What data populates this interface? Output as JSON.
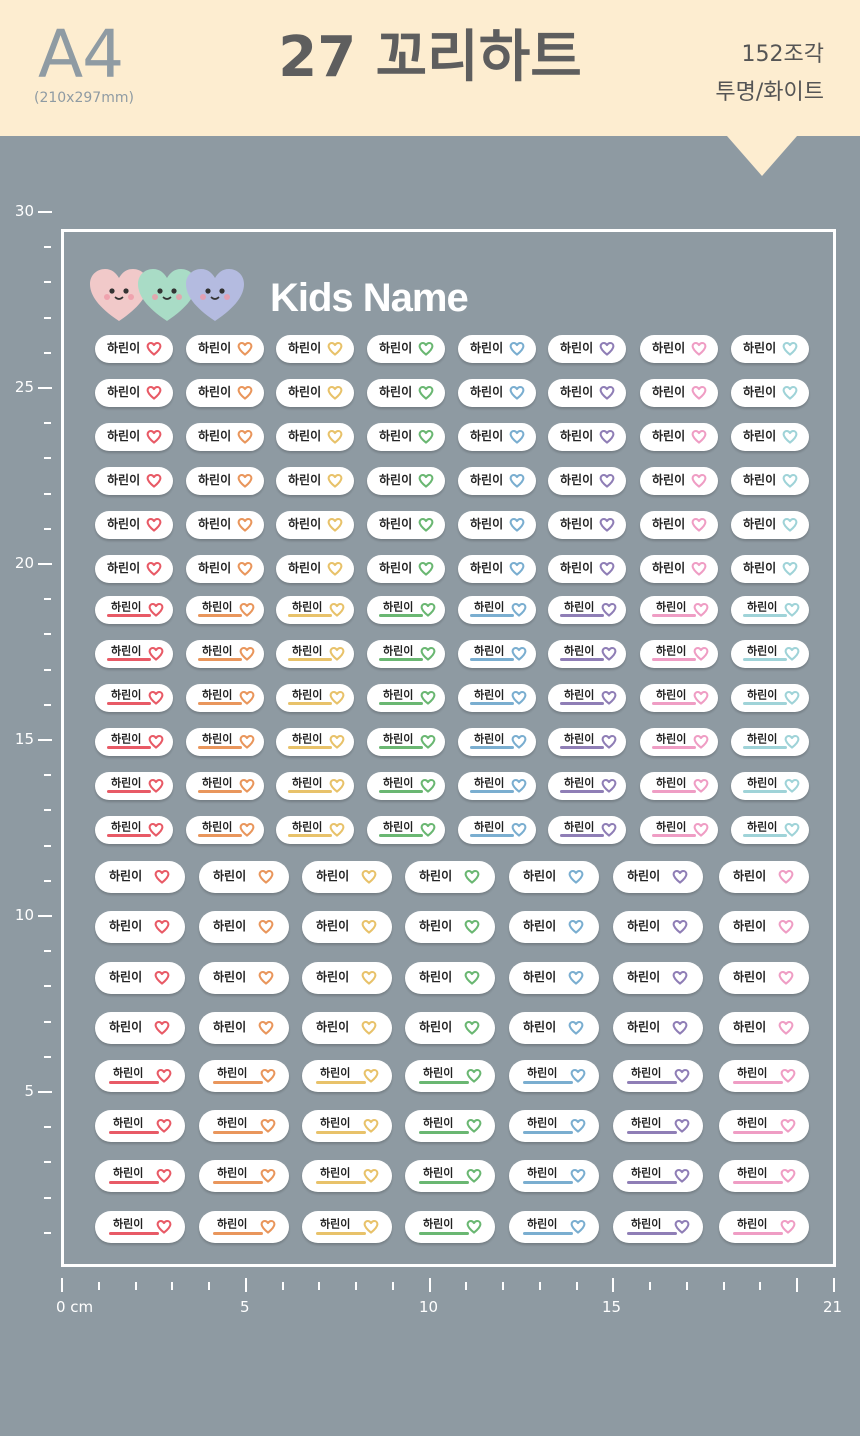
{
  "header": {
    "size_label": "A4",
    "size_dims": "(210x297mm)",
    "product_title": "27 꼬리하트",
    "piece_count": "152조각",
    "material": "투명/화이트"
  },
  "sheet": {
    "brand_text": "Kids Name",
    "sticker_text": "하린이",
    "palette": [
      "#e85a66",
      "#e9965c",
      "#e8c26a",
      "#6ab772",
      "#7aaed0",
      "#8f7eb6",
      "#ef9dc4",
      "#9fd3d8"
    ],
    "palette_7": [
      "#e85a66",
      "#e9965c",
      "#e8c26a",
      "#6ab772",
      "#7aaed0",
      "#8f7eb6",
      "#ef9dc4"
    ],
    "mascot_colors": [
      "#f1c9c9",
      "#a9dcc6",
      "#b4bbe0"
    ]
  },
  "ruler": {
    "vertical_labels": [
      "30",
      "25",
      "20",
      "15",
      "10",
      "5"
    ],
    "horizontal_labels": [
      "0 cm",
      "5",
      "10",
      "15",
      "21"
    ]
  }
}
